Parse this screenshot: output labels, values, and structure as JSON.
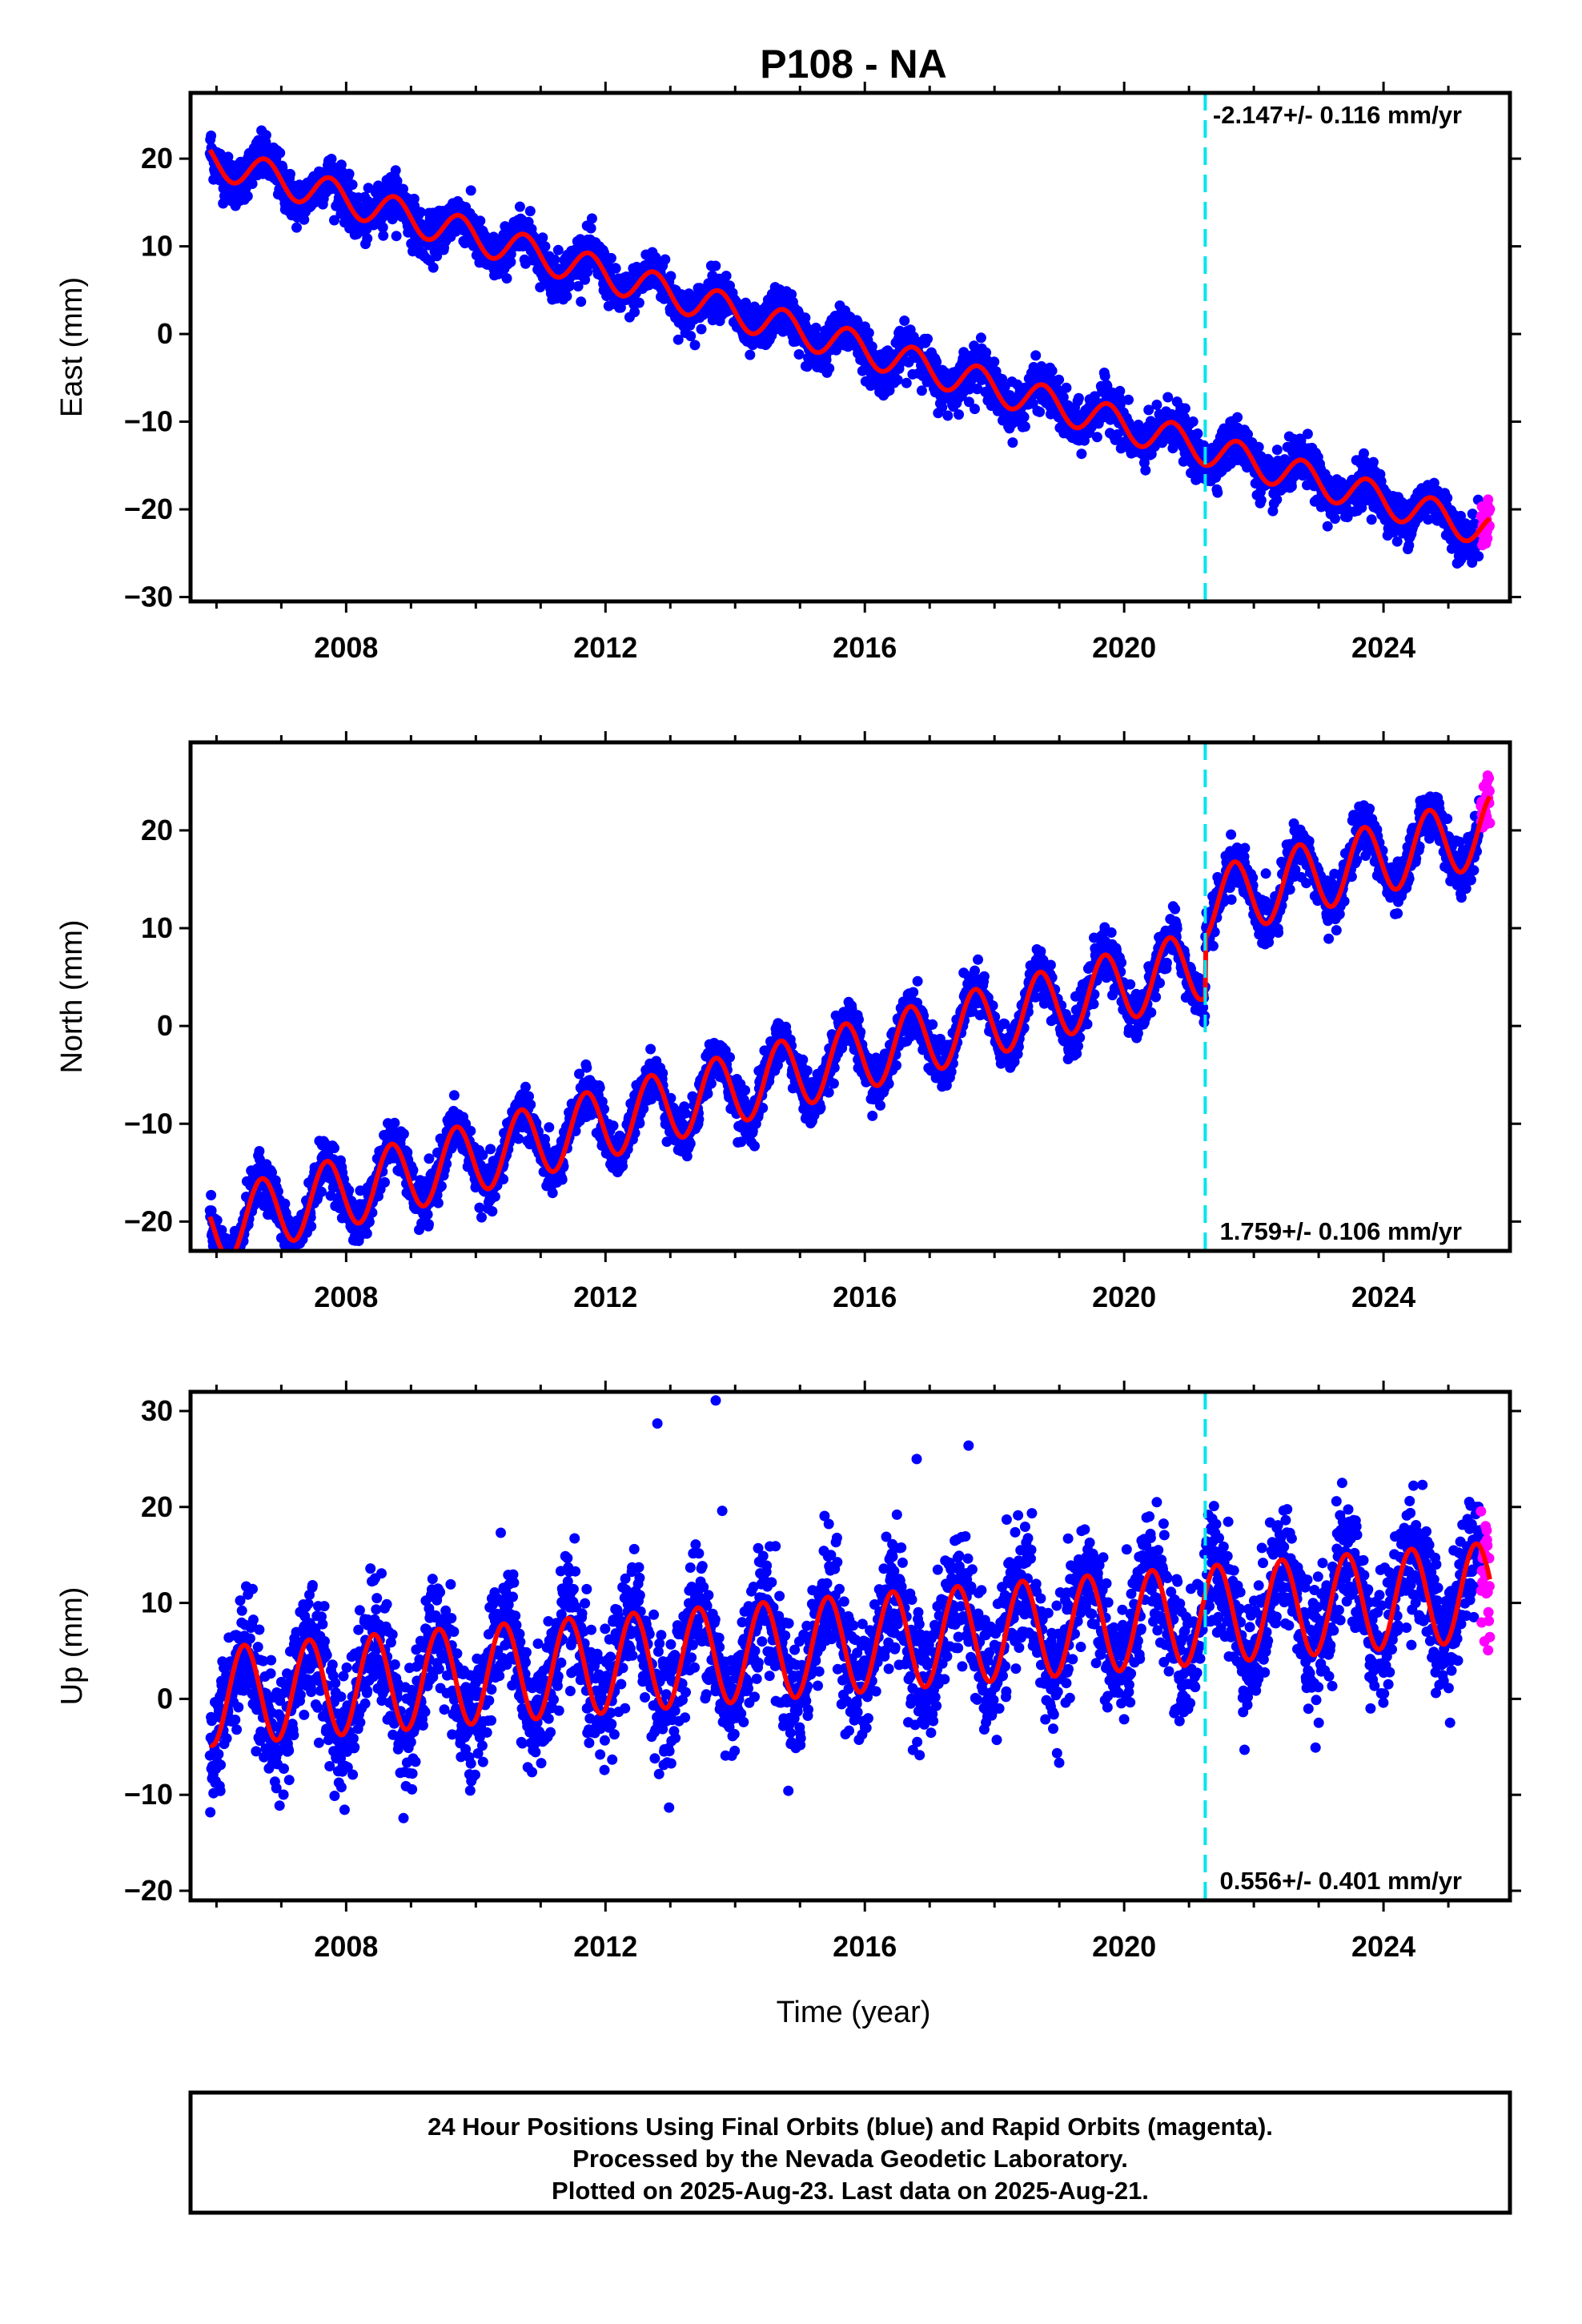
{
  "title": "P108 - NA",
  "xlabel": "Time (year)",
  "footer": {
    "line1": "24 Hour Positions Using Final Orbits (blue) and Rapid Orbits (magenta).",
    "line2": "Processed by the Nevada Geodetic Laboratory.",
    "line3": "Plotted on 2025-Aug-23. Last data on 2025-Aug-21."
  },
  "colors": {
    "final": "#0000ff",
    "rapid": "#ff00ff",
    "model": "#ff0000",
    "event": "#00e5ee",
    "frame": "#000000"
  },
  "chart_data": [
    {
      "type": "scatter",
      "component": "East",
      "ylabel": "East (mm)",
      "rate_text": "-2.147+/- 0.116 mm/yr",
      "rate_position": "top-right",
      "xlim": [
        2005.6,
        2025.95
      ],
      "ylim": [
        -30.5,
        27.5
      ],
      "yticks": [
        20,
        10,
        0,
        -10,
        -20,
        -30
      ],
      "xticks": [
        2008,
        2012,
        2016,
        2020,
        2024
      ],
      "event_line_x": 2021.25,
      "rapid_start": 2025.5,
      "data_end": 2025.64,
      "model": {
        "start": 2005.9,
        "value_at_start": 21.0,
        "rate": -2.147,
        "annual_amplitude": 1.9,
        "annual_phase": 0.4
      },
      "scatter_std": 1.3
    },
    {
      "type": "scatter",
      "component": "North",
      "ylabel": "North (mm)",
      "rate_text": "1.759+/- 0.106 mm/yr",
      "rate_position": "bottom-right",
      "xlim": [
        2005.6,
        2025.95
      ],
      "ylim": [
        -23,
        29
      ],
      "yticks": [
        20,
        10,
        0,
        -10,
        -20
      ],
      "xticks": [
        2008,
        2012,
        2016,
        2020,
        2024
      ],
      "event_line_x": 2021.25,
      "offset_at_event": 6,
      "rapid_start": 2025.5,
      "data_end": 2025.64,
      "model": {
        "start": 2005.9,
        "value_at_start": -19.5,
        "rate": 1.759,
        "annual_amplitude": 3.6,
        "annual_phase": 0.45
      },
      "scatter_std": 1.2
    },
    {
      "type": "scatter",
      "component": "Up",
      "ylabel": "Up (mm)",
      "rate_text": "0.556+/- 0.401 mm/yr",
      "rate_position": "bottom-right",
      "xlim": [
        2005.6,
        2025.95
      ],
      "ylim": [
        -21,
        32
      ],
      "yticks": [
        30,
        20,
        10,
        0,
        -10,
        -20
      ],
      "xticks": [
        2008,
        2012,
        2016,
        2020,
        2024
      ],
      "event_line_x": 2021.25,
      "rapid_start": 2025.5,
      "data_end": 2025.64,
      "model": {
        "start": 2005.9,
        "value_at_start": -4.8,
        "rate": 0.556,
        "annual_amplitude": 5.1,
        "annual_phase": 0.72
      },
      "scatter_std": 3.2,
      "outliers": [
        [
          2012.8,
          28.7
        ],
        [
          2013.7,
          31.1
        ],
        [
          2016.8,
          25
        ],
        [
          2017.6,
          26.4
        ],
        [
          2013.8,
          19.6
        ],
        [
          2024.6,
          22.3
        ]
      ]
    }
  ]
}
